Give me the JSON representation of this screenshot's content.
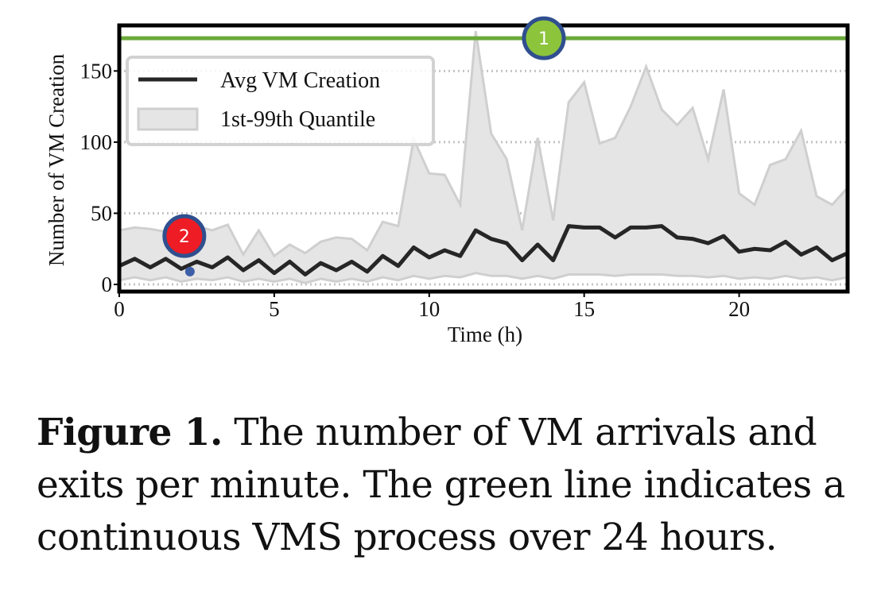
{
  "chart_data": {
    "type": "line",
    "xlabel": "Time (h)",
    "ylabel": "Number of VM Creation",
    "xlim": [
      0,
      23.5
    ],
    "ylim": [
      -5,
      182
    ],
    "xticks": [
      0,
      5,
      10,
      15,
      20
    ],
    "yticks": [
      0,
      50,
      100,
      150
    ],
    "grid": "horizontal dotted",
    "legend_position": "top-left",
    "colors": {
      "avg_line": "#262626",
      "band_fill": "#e5e5e5",
      "band_edge": "#cfcfcf",
      "green_line": "#6aaa3a",
      "marker1_fill": "#8cc43c",
      "marker2_fill": "#ee1c24",
      "marker_ring": "#2f4f8f"
    },
    "x": [
      0,
      0.5,
      1,
      1.5,
      2,
      2.5,
      3,
      3.5,
      4,
      4.5,
      5,
      5.5,
      6,
      6.5,
      7,
      7.5,
      8,
      8.5,
      9,
      9.5,
      10,
      10.5,
      11,
      11.5,
      12,
      12.5,
      13,
      13.5,
      14,
      14.5,
      15,
      15.5,
      16,
      16.5,
      17,
      17.5,
      18,
      18.5,
      19,
      19.5,
      20,
      20.5,
      21,
      21.5,
      22,
      22.5,
      23,
      23.5
    ],
    "series": [
      {
        "name": "Avg VM Creation",
        "values": [
          13,
          18,
          12,
          18,
          11,
          16,
          12,
          19,
          10,
          17,
          8,
          16,
          7,
          15,
          10,
          16,
          9,
          20,
          13,
          26,
          19,
          24,
          20,
          38,
          32,
          29,
          17,
          28,
          17,
          41,
          40,
          40,
          33,
          40,
          40,
          41,
          33,
          32,
          29,
          34,
          23,
          25,
          24,
          30,
          21,
          26,
          17,
          22
        ]
      },
      {
        "name": "1st-99th Quantile",
        "lower": [
          3,
          5,
          3,
          5,
          2,
          4,
          3,
          5,
          2,
          4,
          2,
          4,
          1,
          4,
          2,
          4,
          2,
          5,
          3,
          6,
          4,
          6,
          5,
          8,
          6,
          6,
          4,
          6,
          4,
          7,
          7,
          7,
          6,
          7,
          7,
          7,
          6,
          6,
          5,
          6,
          4,
          5,
          4,
          6,
          4,
          5,
          3,
          5
        ],
        "upper": [
          38,
          40,
          39,
          37,
          36,
          41,
          38,
          42,
          21,
          38,
          20,
          28,
          22,
          30,
          33,
          32,
          24,
          44,
          41,
          102,
          78,
          77,
          56,
          178,
          106,
          88,
          38,
          103,
          45,
          128,
          142,
          99,
          103,
          125,
          153,
          123,
          112,
          124,
          88,
          137,
          64,
          56,
          84,
          88,
          108,
          62,
          56,
          68
        ]
      }
    ],
    "reference_line": {
      "y": 173
    },
    "markers": [
      {
        "label": "1",
        "x": 13.7,
        "y": 173
      },
      {
        "label": "2",
        "x": 2.1,
        "y": 34,
        "dot_y": 9
      }
    ]
  },
  "caption": {
    "label": "Figure 1.",
    "text": " The number of VM arrivals and exits per minute. The green line indicates a continuous VMS process over 24 hours."
  }
}
